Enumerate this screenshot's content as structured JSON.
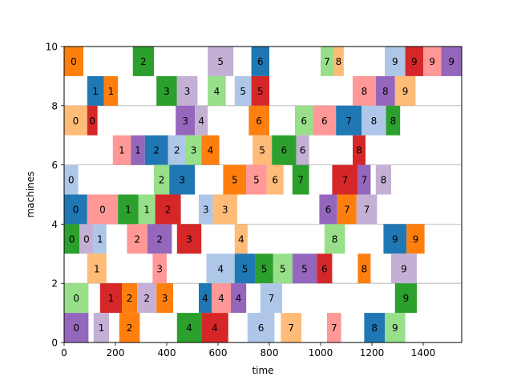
{
  "chart_data": {
    "type": "gantt",
    "title": "",
    "xlabel": "time",
    "ylabel": "machines",
    "xlim": [
      0,
      1550
    ],
    "ylim": [
      0,
      10
    ],
    "xticks": [
      0,
      200,
      400,
      600,
      800,
      1000,
      1200,
      1400
    ],
    "yticks": [
      0,
      2,
      4,
      6,
      8,
      10
    ],
    "grid": "horizontal",
    "colors": {
      "0": "#9467bd",
      "1": "#c5b0d5",
      "2": "#ff7f0e",
      "3": "#d62728",
      "4": "#2ca02c",
      "5": "#d62728",
      "6": "#aec7e8",
      "7": "#ffbb78",
      "8": "#1f77b4",
      "9": "#98df8a",
      "10": "#ff7f0e",
      "11": "#2ca02c",
      "12": "#c5b0d5",
      "13": "#9467bd",
      "14": "#d62728",
      "15": "#1f77b4",
      "16": "#ff9896",
      "17": "#1f77b4"
    },
    "tasks": [
      {
        "machine": 9,
        "label": "0",
        "start": 0,
        "end": 75,
        "color": "#ff7f0e"
      },
      {
        "machine": 9,
        "label": "2",
        "start": 268,
        "end": 350,
        "color": "#2ca02c"
      },
      {
        "machine": 9,
        "label": "5",
        "start": 560,
        "end": 660,
        "color": "#c5b0d5"
      },
      {
        "machine": 9,
        "label": "6",
        "start": 730,
        "end": 800,
        "color": "#1f77b4"
      },
      {
        "machine": 9,
        "label": "7",
        "start": 1000,
        "end": 1050,
        "color": "#98df8a"
      },
      {
        "machine": 9,
        "label": "8",
        "start": 1050,
        "end": 1090,
        "color": "#ffbb78"
      },
      {
        "machine": 9,
        "label": "9",
        "start": 1250,
        "end": 1330,
        "color": "#aec7e8"
      },
      {
        "machine": 9,
        "label": "9",
        "start": 1330,
        "end": 1400,
        "color": "#d62728"
      },
      {
        "machine": 9,
        "label": "9",
        "start": 1400,
        "end": 1470,
        "color": "#ff9896"
      },
      {
        "machine": 9,
        "label": "9",
        "start": 1470,
        "end": 1550,
        "color": "#9467bd"
      },
      {
        "machine": 8,
        "label": "1",
        "start": 90,
        "end": 155,
        "color": "#1f77b4"
      },
      {
        "machine": 8,
        "label": "1",
        "start": 155,
        "end": 210,
        "color": "#ff7f0e"
      },
      {
        "machine": 8,
        "label": "3",
        "start": 360,
        "end": 440,
        "color": "#2ca02c"
      },
      {
        "machine": 8,
        "label": "3",
        "start": 440,
        "end": 520,
        "color": "#c5b0d5"
      },
      {
        "machine": 8,
        "label": "4",
        "start": 560,
        "end": 630,
        "color": "#98df8a"
      },
      {
        "machine": 8,
        "label": "5",
        "start": 665,
        "end": 730,
        "color": "#aec7e8"
      },
      {
        "machine": 8,
        "label": "5",
        "start": 730,
        "end": 800,
        "color": "#d62728"
      },
      {
        "machine": 8,
        "label": "8",
        "start": 1125,
        "end": 1215,
        "color": "#ff9896"
      },
      {
        "machine": 8,
        "label": "8",
        "start": 1215,
        "end": 1290,
        "color": "#9467bd"
      },
      {
        "machine": 8,
        "label": "9",
        "start": 1290,
        "end": 1370,
        "color": "#ffbb78"
      },
      {
        "machine": 7,
        "label": "0",
        "start": 0,
        "end": 90,
        "color": "#ffbb78"
      },
      {
        "machine": 7,
        "label": "0",
        "start": 90,
        "end": 130,
        "color": "#d62728"
      },
      {
        "machine": 7,
        "label": "3",
        "start": 435,
        "end": 510,
        "color": "#9467bd"
      },
      {
        "machine": 7,
        "label": "4",
        "start": 510,
        "end": 560,
        "color": "#c5b0d5"
      },
      {
        "machine": 7,
        "label": "6",
        "start": 720,
        "end": 800,
        "color": "#ff7f0e"
      },
      {
        "machine": 7,
        "label": "6",
        "start": 900,
        "end": 970,
        "color": "#98df8a"
      },
      {
        "machine": 7,
        "label": "6",
        "start": 970,
        "end": 1060,
        "color": "#ff9896"
      },
      {
        "machine": 7,
        "label": "7",
        "start": 1060,
        "end": 1160,
        "color": "#1f77b4"
      },
      {
        "machine": 7,
        "label": "8",
        "start": 1160,
        "end": 1255,
        "color": "#aec7e8"
      },
      {
        "machine": 7,
        "label": "8",
        "start": 1255,
        "end": 1310,
        "color": "#2ca02c"
      },
      {
        "machine": 6,
        "label": "1",
        "start": 190,
        "end": 260,
        "color": "#ff9896"
      },
      {
        "machine": 6,
        "label": "1",
        "start": 260,
        "end": 315,
        "color": "#9467bd"
      },
      {
        "machine": 6,
        "label": "2",
        "start": 315,
        "end": 405,
        "color": "#1f77b4"
      },
      {
        "machine": 6,
        "label": "2",
        "start": 405,
        "end": 475,
        "color": "#aec7e8"
      },
      {
        "machine": 6,
        "label": "3",
        "start": 475,
        "end": 535,
        "color": "#98df8a"
      },
      {
        "machine": 6,
        "label": "4",
        "start": 535,
        "end": 605,
        "color": "#ff7f0e"
      },
      {
        "machine": 6,
        "label": "5",
        "start": 735,
        "end": 810,
        "color": "#ffbb78"
      },
      {
        "machine": 6,
        "label": "6",
        "start": 810,
        "end": 905,
        "color": "#2ca02c"
      },
      {
        "machine": 6,
        "label": "6",
        "start": 905,
        "end": 955,
        "color": "#c5b0d5"
      },
      {
        "machine": 6,
        "label": "8",
        "start": 1125,
        "end": 1175,
        "color": "#d62728"
      },
      {
        "machine": 5,
        "label": "0",
        "start": 0,
        "end": 55,
        "color": "#aec7e8"
      },
      {
        "machine": 5,
        "label": "2",
        "start": 350,
        "end": 410,
        "color": "#98df8a"
      },
      {
        "machine": 5,
        "label": "3",
        "start": 410,
        "end": 510,
        "color": "#1f77b4"
      },
      {
        "machine": 5,
        "label": "5",
        "start": 620,
        "end": 710,
        "color": "#ff7f0e"
      },
      {
        "machine": 5,
        "label": "5",
        "start": 710,
        "end": 790,
        "color": "#ff9896"
      },
      {
        "machine": 5,
        "label": "6",
        "start": 790,
        "end": 855,
        "color": "#ffbb78"
      },
      {
        "machine": 5,
        "label": "7",
        "start": 890,
        "end": 955,
        "color": "#2ca02c"
      },
      {
        "machine": 5,
        "label": "7",
        "start": 1045,
        "end": 1145,
        "color": "#d62728"
      },
      {
        "machine": 5,
        "label": "7",
        "start": 1145,
        "end": 1195,
        "color": "#9467bd"
      },
      {
        "machine": 5,
        "label": "8",
        "start": 1215,
        "end": 1275,
        "color": "#c5b0d5"
      },
      {
        "machine": 4,
        "label": "0",
        "start": 0,
        "end": 90,
        "color": "#1f77b4"
      },
      {
        "machine": 4,
        "label": "0",
        "start": 90,
        "end": 210,
        "color": "#ff9896"
      },
      {
        "machine": 4,
        "label": "1",
        "start": 210,
        "end": 290,
        "color": "#2ca02c"
      },
      {
        "machine": 4,
        "label": "1",
        "start": 290,
        "end": 355,
        "color": "#98df8a"
      },
      {
        "machine": 4,
        "label": "2",
        "start": 355,
        "end": 455,
        "color": "#d62728"
      },
      {
        "machine": 4,
        "label": "3",
        "start": 525,
        "end": 580,
        "color": "#aec7e8"
      },
      {
        "machine": 4,
        "label": "3",
        "start": 580,
        "end": 675,
        "color": "#ffbb78"
      },
      {
        "machine": 4,
        "label": "6",
        "start": 995,
        "end": 1065,
        "color": "#9467bd"
      },
      {
        "machine": 4,
        "label": "7",
        "start": 1065,
        "end": 1140,
        "color": "#ff7f0e"
      },
      {
        "machine": 4,
        "label": "7",
        "start": 1140,
        "end": 1220,
        "color": "#c5b0d5"
      },
      {
        "machine": 3,
        "label": "0",
        "start": 0,
        "end": 60,
        "color": "#2ca02c"
      },
      {
        "machine": 3,
        "label": "0",
        "start": 60,
        "end": 115,
        "color": "#c5b0d5"
      },
      {
        "machine": 3,
        "label": "1",
        "start": 115,
        "end": 165,
        "color": "#aec7e8"
      },
      {
        "machine": 3,
        "label": "2",
        "start": 245,
        "end": 325,
        "color": "#ff9896"
      },
      {
        "machine": 3,
        "label": "2",
        "start": 325,
        "end": 420,
        "color": "#9467bd"
      },
      {
        "machine": 3,
        "label": "3",
        "start": 440,
        "end": 535,
        "color": "#d62728"
      },
      {
        "machine": 3,
        "label": "4",
        "start": 665,
        "end": 715,
        "color": "#ffbb78"
      },
      {
        "machine": 3,
        "label": "8",
        "start": 1015,
        "end": 1095,
        "color": "#98df8a"
      },
      {
        "machine": 3,
        "label": "9",
        "start": 1245,
        "end": 1335,
        "color": "#1f77b4"
      },
      {
        "machine": 3,
        "label": "9",
        "start": 1335,
        "end": 1405,
        "color": "#ff7f0e"
      },
      {
        "machine": 2,
        "label": "1",
        "start": 90,
        "end": 165,
        "color": "#ffbb78"
      },
      {
        "machine": 2,
        "label": "3",
        "start": 345,
        "end": 400,
        "color": "#ff9896"
      },
      {
        "machine": 2,
        "label": "4",
        "start": 555,
        "end": 665,
        "color": "#aec7e8"
      },
      {
        "machine": 2,
        "label": "5",
        "start": 665,
        "end": 745,
        "color": "#1f77b4"
      },
      {
        "machine": 2,
        "label": "5",
        "start": 745,
        "end": 815,
        "color": "#2ca02c"
      },
      {
        "machine": 2,
        "label": "5",
        "start": 815,
        "end": 890,
        "color": "#98df8a"
      },
      {
        "machine": 2,
        "label": "5",
        "start": 890,
        "end": 985,
        "color": "#9467bd"
      },
      {
        "machine": 2,
        "label": "6",
        "start": 985,
        "end": 1045,
        "color": "#d62728"
      },
      {
        "machine": 2,
        "label": "8",
        "start": 1145,
        "end": 1195,
        "color": "#ff7f0e"
      },
      {
        "machine": 2,
        "label": "9",
        "start": 1275,
        "end": 1375,
        "color": "#c5b0d5"
      },
      {
        "machine": 1,
        "label": "0",
        "start": 0,
        "end": 95,
        "color": "#98df8a"
      },
      {
        "machine": 1,
        "label": "1",
        "start": 140,
        "end": 225,
        "color": "#d62728"
      },
      {
        "machine": 1,
        "label": "2",
        "start": 225,
        "end": 285,
        "color": "#ff7f0e"
      },
      {
        "machine": 1,
        "label": "2",
        "start": 285,
        "end": 360,
        "color": "#c5b0d5"
      },
      {
        "machine": 1,
        "label": "3",
        "start": 360,
        "end": 425,
        "color": "#ff7f0e"
      },
      {
        "machine": 1,
        "label": "4",
        "start": 525,
        "end": 575,
        "color": "#1f77b4"
      },
      {
        "machine": 1,
        "label": "4",
        "start": 575,
        "end": 650,
        "color": "#ff9896"
      },
      {
        "machine": 1,
        "label": "4",
        "start": 650,
        "end": 710,
        "color": "#9467bd"
      },
      {
        "machine": 1,
        "label": "7",
        "start": 765,
        "end": 850,
        "color": "#aec7e8"
      },
      {
        "machine": 1,
        "label": "9",
        "start": 1290,
        "end": 1375,
        "color": "#2ca02c"
      },
      {
        "machine": 0,
        "label": "0",
        "start": 0,
        "end": 95,
        "color": "#9467bd"
      },
      {
        "machine": 0,
        "label": "1",
        "start": 115,
        "end": 175,
        "color": "#c5b0d5"
      },
      {
        "machine": 0,
        "label": "2",
        "start": 215,
        "end": 295,
        "color": "#ff7f0e"
      },
      {
        "machine": 0,
        "label": "4",
        "start": 440,
        "end": 535,
        "color": "#2ca02c"
      },
      {
        "machine": 0,
        "label": "4",
        "start": 535,
        "end": 640,
        "color": "#d62728"
      },
      {
        "machine": 0,
        "label": "6",
        "start": 715,
        "end": 820,
        "color": "#aec7e8"
      },
      {
        "machine": 0,
        "label": "7",
        "start": 845,
        "end": 925,
        "color": "#ffbb78"
      },
      {
        "machine": 0,
        "label": "7",
        "start": 1025,
        "end": 1080,
        "color": "#ff9896"
      },
      {
        "machine": 0,
        "label": "8",
        "start": 1170,
        "end": 1250,
        "color": "#1f77b4"
      },
      {
        "machine": 0,
        "label": "9",
        "start": 1250,
        "end": 1330,
        "color": "#98df8a"
      }
    ]
  }
}
